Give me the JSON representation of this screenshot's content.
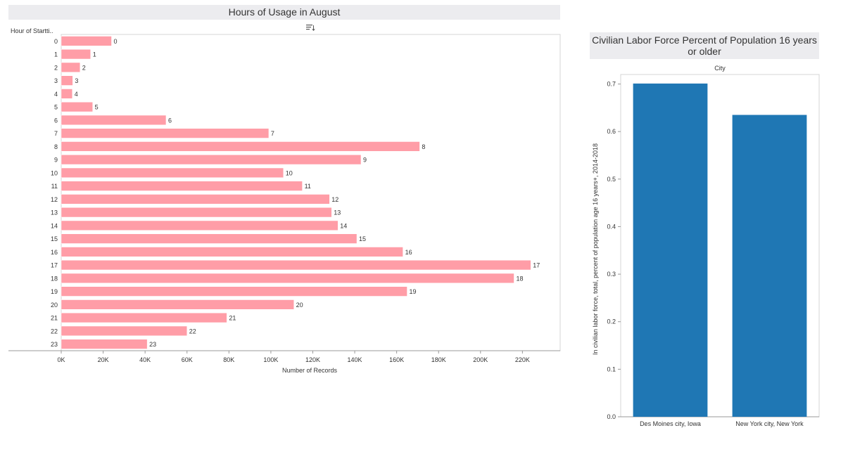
{
  "chart_data": [
    {
      "type": "bar",
      "orientation": "horizontal",
      "title": "Hours of Usage in August",
      "row_header": "Hour of Startti..",
      "xlabel": "Number of Records",
      "categories": [
        "0",
        "1",
        "2",
        "3",
        "4",
        "5",
        "6",
        "7",
        "8",
        "9",
        "10",
        "11",
        "12",
        "13",
        "14",
        "15",
        "16",
        "17",
        "18",
        "19",
        "20",
        "21",
        "22",
        "23"
      ],
      "values": [
        24000,
        14000,
        9000,
        5500,
        5300,
        15000,
        50000,
        99000,
        171000,
        143000,
        106000,
        115000,
        128000,
        129000,
        132000,
        141000,
        163000,
        224000,
        216000,
        165000,
        111000,
        79000,
        60000,
        41000
      ],
      "data_labels": [
        "0",
        "1",
        "2",
        "3",
        "4",
        "5",
        "6",
        "7",
        "8",
        "9",
        "10",
        "11",
        "12",
        "13",
        "14",
        "15",
        "16",
        "17",
        "18",
        "19",
        "20",
        "21",
        "22",
        "23"
      ],
      "xlim": [
        0,
        238000
      ],
      "xticks": [
        0,
        20000,
        40000,
        60000,
        80000,
        100000,
        120000,
        140000,
        160000,
        180000,
        200000,
        220000
      ],
      "xtick_labels": [
        "0K",
        "20K",
        "40K",
        "60K",
        "80K",
        "100K",
        "120K",
        "140K",
        "160K",
        "180K",
        "200K",
        "220K"
      ],
      "bar_color": "#ff9da7",
      "grid": false
    },
    {
      "type": "bar",
      "orientation": "vertical",
      "title": "Civilian Labor Force Percent of Population 16 years or older",
      "column_header": "City",
      "ylabel": "In civilian labor force, total, percent of population age 16 years+, 2014-2018",
      "categories": [
        "Des Moines city, Iowa",
        "New York city, New York"
      ],
      "values": [
        0.701,
        0.635
      ],
      "ylim": [
        0,
        0.72
      ],
      "yticks": [
        0.0,
        0.1,
        0.2,
        0.3,
        0.4,
        0.5,
        0.6,
        0.7
      ],
      "ytick_labels": [
        "0.0",
        "0.1",
        "0.2",
        "0.3",
        "0.4",
        "0.5",
        "0.6",
        "0.7"
      ],
      "bar_color": "#1f77b4",
      "grid": false
    }
  ],
  "icons": {
    "sort": "sort-descending-icon"
  }
}
